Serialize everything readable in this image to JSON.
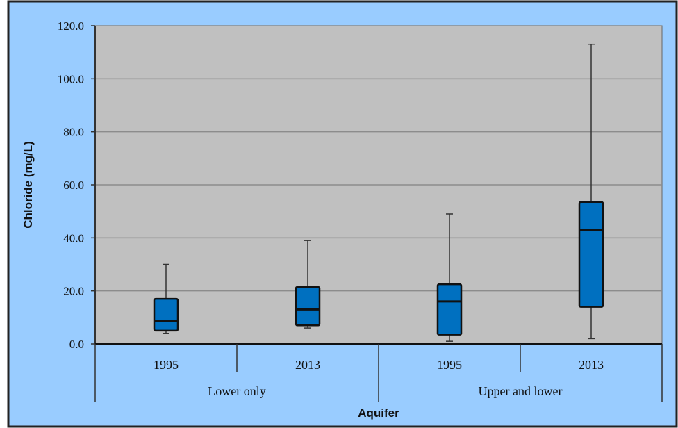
{
  "chart_data": {
    "type": "box",
    "ylabel": "Chloride (mg/L)",
    "xlabel": "Aquifer",
    "ylim": [
      0,
      120
    ],
    "yticks": [
      0,
      20,
      40,
      60,
      80,
      100,
      120
    ],
    "ytick_labels": [
      "0.0",
      "20.0",
      "40.0",
      "60.0",
      "80.0",
      "100.0",
      "120.0"
    ],
    "grid": true,
    "groups": [
      {
        "label": "Lower only",
        "categories": [
          "1995",
          "2013"
        ]
      },
      {
        "label": "Upper and lower",
        "categories": [
          "1995",
          "2013"
        ]
      }
    ],
    "boxes": [
      {
        "group": "Lower only",
        "category": "1995",
        "min": 4,
        "q1": 5,
        "median": 8.5,
        "q3": 17,
        "max": 30
      },
      {
        "group": "Lower only",
        "category": "2013",
        "min": 6,
        "q1": 7,
        "median": 13,
        "q3": 21.5,
        "max": 39
      },
      {
        "group": "Upper and lower",
        "category": "1995",
        "min": 1,
        "q1": 3.5,
        "median": 16,
        "q3": 22.5,
        "max": 49
      },
      {
        "group": "Upper and lower",
        "category": "2013",
        "min": 2,
        "q1": 14,
        "median": 43,
        "q3": 53.5,
        "max": 113
      }
    ],
    "colors": {
      "box_fill": "#0070c0",
      "plot_background": "#c0c0c0",
      "frame_background": "#99ccff",
      "gridline": "#8c8c8c"
    }
  }
}
